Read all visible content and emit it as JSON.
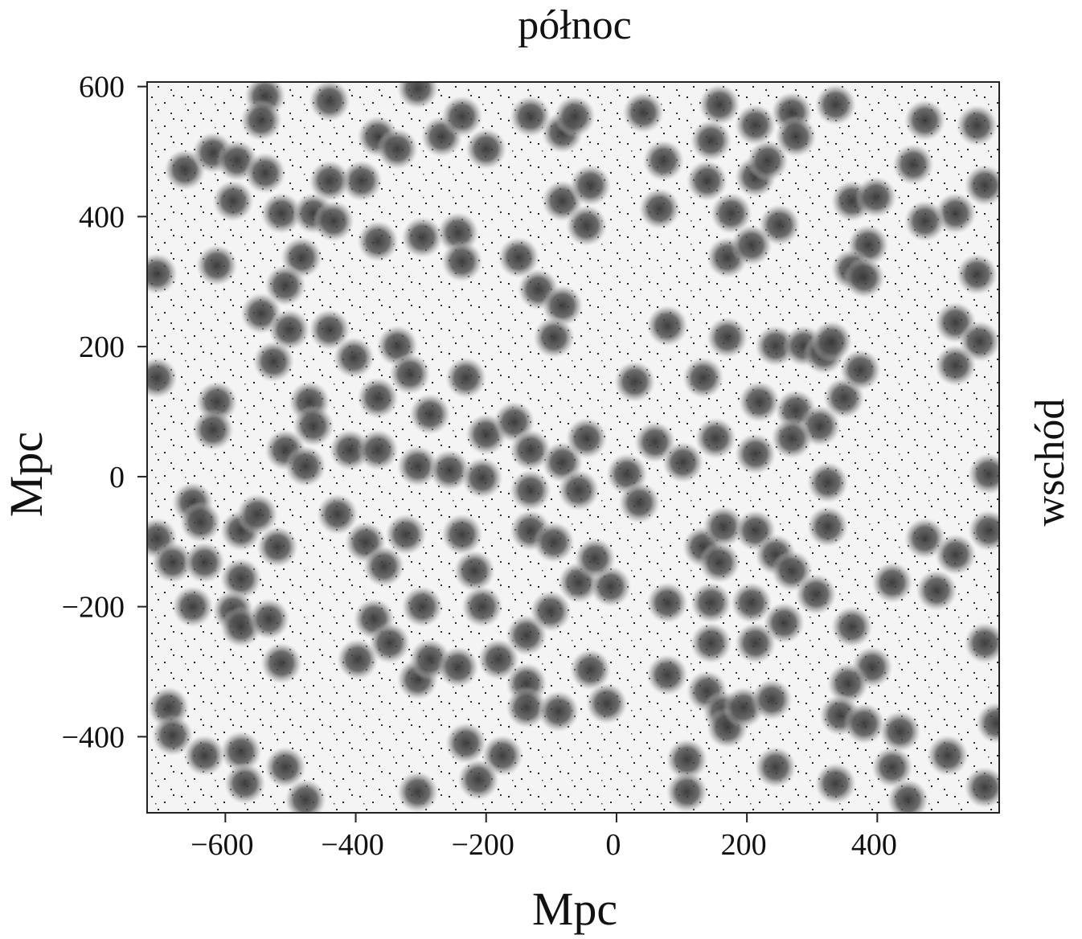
{
  "chart_data": {
    "type": "density",
    "title": "północ",
    "right_label": "wschód",
    "xlabel": "Mpc",
    "ylabel": "Mpc",
    "xlim": [
      -720,
      587
    ],
    "ylim": [
      -517,
      607
    ],
    "xticks": [
      {
        "value": -600,
        "label": "−600"
      },
      {
        "value": -400,
        "label": "−400"
      },
      {
        "value": -200,
        "label": "−200"
      },
      0,
      200,
      400
    ],
    "yticks": [
      600,
      400,
      200,
      0,
      {
        "value": -200,
        "label": "−200"
      },
      {
        "value": -400,
        "label": "−400"
      }
    ],
    "color": "#3a3a3a",
    "series": [
      {
        "x": [
          -539,
          -440,
          -545,
          -662,
          -619,
          -582,
          -539,
          -588,
          -514,
          -465,
          -434,
          -391,
          -440,
          -366,
          -336,
          -268,
          -237,
          -200,
          -305,
          -298,
          -243,
          -237,
          -366,
          -483,
          -508,
          -545,
          -613,
          -502,
          -440,
          -403,
          -526,
          -336,
          -317,
          -366,
          -286,
          -231,
          -471,
          -465,
          -508,
          -477,
          -409,
          -366,
          -305,
          -256,
          -206,
          -200,
          -157,
          -132,
          -132,
          -83,
          -58,
          -132,
          -96,
          -150,
          -120,
          -83,
          -96,
          -83,
          -46,
          -40,
          -83,
          -132,
          -64,
          41,
          66,
          72,
          78,
          28,
          -46,
          16,
          59,
          102,
          152,
          35,
          133,
          170,
          139,
          176,
          158,
          213,
          232,
          213,
          269,
          275,
          250,
          170,
          207,
          145,
          219,
          244,
          287,
          318,
          275,
          312,
          269,
          349,
          374,
          213,
          324,
          324,
          330,
          336,
          473,
          455,
          361,
          398,
          386,
          361,
          380,
          520,
          473,
          553,
          565,
          553,
          520,
          557,
          520,
          571,
          -705,
          -705,
          -613,
          -619,
          -650,
          -638,
          -705,
          -681,
          -632,
          -576,
          -551,
          -520,
          -576,
          -650,
          -588,
          -576,
          -533,
          -514,
          -687,
          -681,
          -632,
          -576,
          -570,
          -508,
          -477,
          -428,
          -385,
          -357,
          -372,
          -348,
          -397,
          -305,
          -298,
          -286,
          -243,
          -323,
          -237,
          -218,
          -206,
          -181,
          -138,
          -138,
          -101,
          -138,
          -89,
          -231,
          -175,
          -212,
          -305,
          -40,
          -15,
          -58,
          -9,
          -33,
          78,
          78,
          108,
          108,
          133,
          158,
          145,
          145,
          139,
          164,
          170,
          195,
          164,
          213,
          244,
          269,
          207,
          257,
          213,
          238,
          244,
          306,
          361,
          392,
          355,
          343,
          380,
          435,
          423,
          336,
          447,
          423,
          473,
          491,
          520,
          571,
          565,
          508,
          565,
          583
        ],
        "y": [
          585,
          578,
          548,
          472,
          498,
          486,
          467,
          424,
          405,
          405,
          393,
          455,
          455,
          523,
          504,
          523,
          554,
          504,
          597,
          368,
          375,
          331,
          362,
          337,
          294,
          251,
          325,
          226,
          226,
          183,
          177,
          201,
          158,
          121,
          96,
          152,
          115,
          78,
          41,
          16,
          41,
          41,
          16,
          10,
          -2,
          65,
          84,
          41,
          -21,
          22,
          -21,
          -83,
          -101,
          337,
          288,
          263,
          214,
          424,
          386,
          448,
          529,
          554,
          554,
          560,
          412,
          486,
          232,
          146,
          59,
          4,
          53,
          22,
          59,
          -40,
          152,
          214,
          455,
          405,
          572,
          461,
          486,
          541,
          560,
          523,
          387,
          337,
          356,
          517,
          115,
          201,
          201,
          189,
          102,
          78,
          59,
          121,
          164,
          35,
          -9,
          -77,
          208,
          572,
          548,
          480,
          424,
          430,
          356,
          319,
          306,
          405,
          393,
          540,
          448,
          311,
          237,
          208,
          171,
          4,
          312,
          152,
          115,
          72,
          -40,
          -70,
          -95,
          -132,
          -132,
          -83,
          -58,
          -108,
          -157,
          -200,
          -206,
          -231,
          -219,
          -287,
          -355,
          -398,
          -429,
          -423,
          -472,
          -447,
          -497,
          -58,
          -101,
          -138,
          -219,
          -256,
          -281,
          -312,
          -200,
          -281,
          -293,
          -89,
          -89,
          -145,
          -200,
          -281,
          -318,
          -244,
          -207,
          -355,
          -361,
          -410,
          -429,
          -466,
          -485,
          -297,
          -349,
          -163,
          -169,
          -126,
          -194,
          -305,
          -435,
          -485,
          -108,
          -132,
          -194,
          -256,
          -330,
          -361,
          -386,
          -355,
          -77,
          -83,
          -120,
          -145,
          -194,
          -225,
          -256,
          -343,
          -447,
          -181,
          -231,
          -293,
          -318,
          -367,
          -380,
          -392,
          -447,
          -472,
          -497,
          -163,
          -95,
          -175,
          -120,
          -83,
          -256,
          -429,
          -478,
          -379
        ]
      }
    ]
  }
}
